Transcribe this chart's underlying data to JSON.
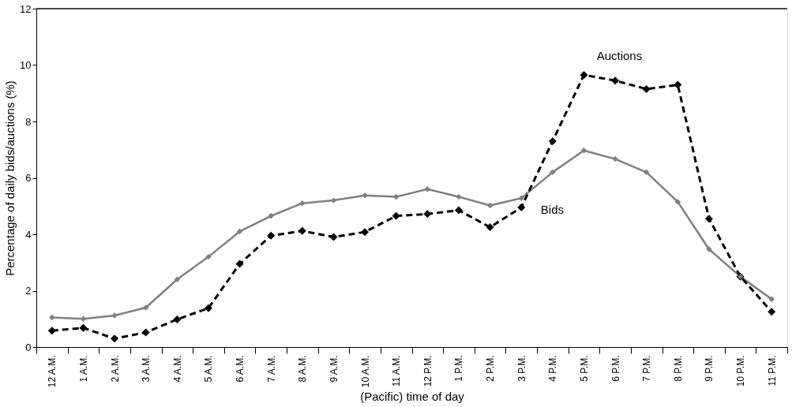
{
  "chart_data": {
    "type": "line",
    "ylabel": "Percentage of daily bids/auctions (%)",
    "xlabel": "(Pacific) time of day",
    "categories": [
      "12 A.M.",
      "1 A.M.",
      "2 A.M.",
      "3 A.M.",
      "4 A.M.",
      "5 A.M.",
      "6 A.M.",
      "7 A.M.",
      "8 A.M.",
      "9 A.M.",
      "10 A.M.",
      "11 A.M.",
      "12 P.M.",
      "1 P.M.",
      "2 P.M.",
      "3 P.M.",
      "4 P.M.",
      "5 P.M.",
      "6 P.M.",
      "7 P.M.",
      "8 P.M.",
      "9 P.M.",
      "10 P.M.",
      "11 P.M."
    ],
    "series": [
      {
        "name": "Bids",
        "color": "#808080",
        "line_style": "solid",
        "values": [
          1.05,
          1.0,
          1.12,
          1.4,
          2.4,
          3.2,
          4.1,
          4.65,
          5.1,
          5.2,
          5.38,
          5.33,
          5.6,
          5.33,
          5.02,
          5.28,
          6.2,
          6.97,
          6.67,
          6.2,
          5.15,
          3.47,
          2.5,
          1.7
        ]
      },
      {
        "name": "Auctions",
        "color": "#000000",
        "line_style": "dashed",
        "values": [
          0.58,
          0.68,
          0.3,
          0.52,
          0.98,
          1.38,
          2.95,
          3.95,
          4.12,
          3.9,
          4.08,
          4.65,
          4.72,
          4.85,
          4.25,
          4.95,
          7.3,
          9.65,
          9.45,
          9.15,
          9.3,
          4.55,
          2.5,
          1.25
        ]
      }
    ],
    "ylim": [
      0,
      12
    ],
    "yticks": [
      0,
      2,
      4,
      6,
      8,
      10,
      12
    ],
    "marker": "diamond"
  }
}
